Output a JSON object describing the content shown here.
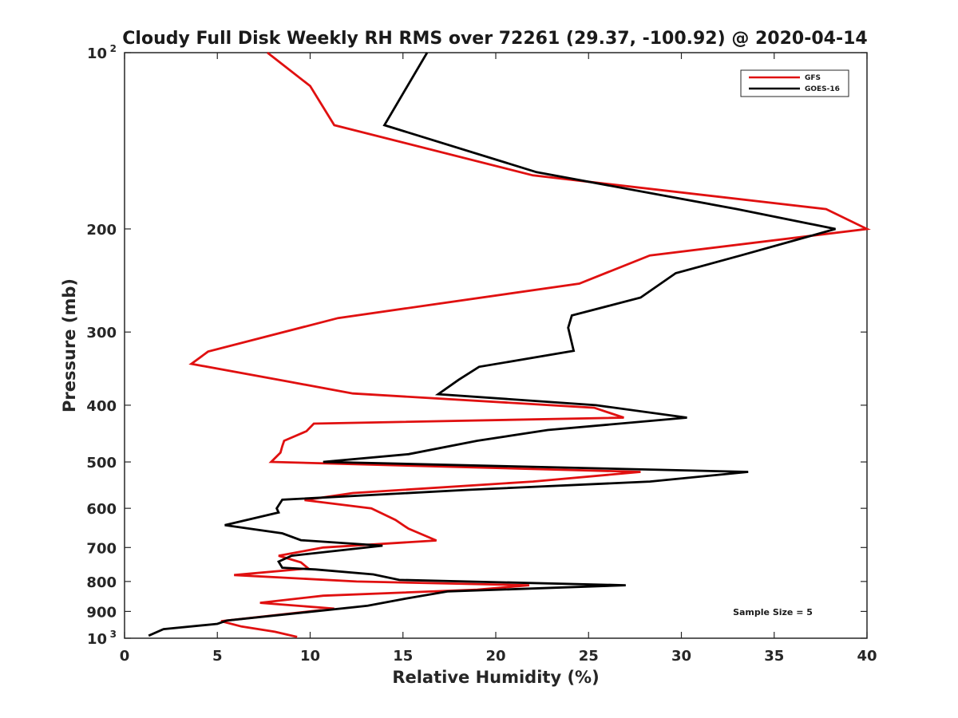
{
  "chart_data": {
    "type": "line",
    "title": "Cloudy Full Disk Weekly RH RMS over 72261 (29.37, -100.92) @ 2020-04-14",
    "xlabel": "Relative Humidity (%)",
    "ylabel": "Pressure (mb)",
    "xlim": [
      0,
      40
    ],
    "ylim": [
      100,
      1000
    ],
    "y_scale": "log",
    "y_reversed": true,
    "x_ticks": [
      "0",
      "5",
      "10",
      "15",
      "20",
      "25",
      "30",
      "35",
      "40"
    ],
    "y_ticks": [
      {
        "value": 100,
        "label": "10",
        "sup": "2"
      },
      {
        "value": 200,
        "label": "200",
        "sup": ""
      },
      {
        "value": 300,
        "label": "300",
        "sup": ""
      },
      {
        "value": 400,
        "label": "400",
        "sup": ""
      },
      {
        "value": 500,
        "label": "500",
        "sup": ""
      },
      {
        "value": 600,
        "label": "600",
        "sup": ""
      },
      {
        "value": 700,
        "label": "700",
        "sup": ""
      },
      {
        "value": 800,
        "label": "800",
        "sup": ""
      },
      {
        "value": 900,
        "label": "900",
        "sup": ""
      },
      {
        "value": 1000,
        "label": "10",
        "sup": "3"
      }
    ],
    "grid": false,
    "legend_position": "top-right",
    "annotation": "Sample Size = 5",
    "series": [
      {
        "name": "GFS",
        "color": "#e01010",
        "points": [
          [
            7.7,
            100
          ],
          [
            10.0,
            114
          ],
          [
            11.3,
            133
          ],
          [
            22.0,
            162
          ],
          [
            37.8,
            185
          ],
          [
            40.0,
            200
          ],
          [
            28.3,
            222
          ],
          [
            24.5,
            248
          ],
          [
            11.5,
            284
          ],
          [
            4.5,
            324
          ],
          [
            3.6,
            340
          ],
          [
            8.7,
            364
          ],
          [
            12.3,
            382
          ],
          [
            25.3,
            404
          ],
          [
            26.9,
            420
          ],
          [
            10.2,
            430
          ],
          [
            9.8,
            443
          ],
          [
            8.6,
            460
          ],
          [
            8.5,
            470
          ],
          [
            8.4,
            482
          ],
          [
            7.9,
            500
          ],
          [
            27.8,
            520
          ],
          [
            22.0,
            540
          ],
          [
            12.3,
            565
          ],
          [
            9.7,
            581
          ],
          [
            13.3,
            600
          ],
          [
            14.6,
            628
          ],
          [
            15.3,
            650
          ],
          [
            16.8,
            681
          ],
          [
            10.7,
            700
          ],
          [
            8.3,
            723
          ],
          [
            9.5,
            742
          ],
          [
            9.9,
            760
          ],
          [
            5.9,
            780
          ],
          [
            12.5,
            800
          ],
          [
            21.8,
            812
          ],
          [
            19.0,
            826
          ],
          [
            10.7,
            846
          ],
          [
            7.3,
            870
          ],
          [
            11.3,
            890
          ],
          [
            8.6,
            910
          ],
          [
            5.2,
            935
          ],
          [
            6.3,
            955
          ],
          [
            8.1,
            975
          ],
          [
            9.3,
            995
          ]
        ]
      },
      {
        "name": "GOES-16",
        "color": "#000000",
        "points": [
          [
            16.3,
            100
          ],
          [
            14.0,
            133
          ],
          [
            22.2,
            160
          ],
          [
            33.0,
            185
          ],
          [
            38.3,
            200
          ],
          [
            33.2,
            222
          ],
          [
            29.7,
            238
          ],
          [
            27.8,
            262
          ],
          [
            24.1,
            281
          ],
          [
            23.9,
            295
          ],
          [
            24.2,
            323
          ],
          [
            19.1,
            344
          ],
          [
            18.0,
            362
          ],
          [
            16.9,
            383
          ],
          [
            25.4,
            400
          ],
          [
            30.3,
            420
          ],
          [
            22.8,
            441
          ],
          [
            19.0,
            460
          ],
          [
            15.3,
            485
          ],
          [
            10.7,
            500
          ],
          [
            33.6,
            520
          ],
          [
            28.3,
            540
          ],
          [
            18.5,
            558
          ],
          [
            8.5,
            580
          ],
          [
            8.2,
            600
          ],
          [
            8.3,
            610
          ],
          [
            5.4,
            641
          ],
          [
            8.5,
            662
          ],
          [
            9.5,
            680
          ],
          [
            13.9,
            695
          ],
          [
            9.0,
            723
          ],
          [
            8.3,
            740
          ],
          [
            8.5,
            758
          ],
          [
            10.3,
            763
          ],
          [
            13.4,
            778
          ],
          [
            14.8,
            795
          ],
          [
            27.0,
            812
          ],
          [
            17.4,
            832
          ],
          [
            15.2,
            855
          ],
          [
            13.1,
            880
          ],
          [
            5.5,
            933
          ],
          [
            5.0,
            945
          ],
          [
            2.1,
            965
          ],
          [
            1.3,
            990
          ]
        ]
      }
    ]
  }
}
